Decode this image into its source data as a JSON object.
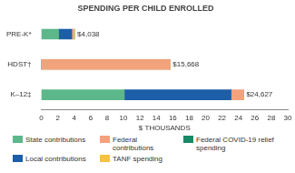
{
  "chart_data": {
    "type": "bar",
    "title": "SPENDING PER CHILD ENROLLED",
    "orientation": "horizontal",
    "stacked": true,
    "grid": false,
    "legend": "bottom",
    "x_label": "$ THOUSANDS",
    "categories": [
      "PRE-K*",
      "HDST†",
      "K–12‡"
    ],
    "series": [
      {
        "name": "State contributions",
        "color": "#5cb88a",
        "values": [
          2.1,
          0,
          10.1
        ]
      },
      {
        "name": "Local contributions",
        "color": "#1c5ea8",
        "values": [
          1.6,
          0,
          13.0
        ]
      },
      {
        "name": "Federal contributions",
        "color": "#f2a37c",
        "values": [
          0.2,
          15.668,
          1.527
        ]
      },
      {
        "name": "TANF spending",
        "color": "#f6c244",
        "values": [
          0.1,
          0,
          0
        ]
      },
      {
        "name": "Federal COVID-19 relief spending",
        "color": "#178a68",
        "values": [
          0.038,
          0,
          0
        ]
      }
    ],
    "annotations": [
      {
        "category": "PRE-K*",
        "value": 4.038,
        "label": "$4,038"
      },
      {
        "category": "HDST†",
        "value": 15.668,
        "label": "$15,668"
      },
      {
        "category": "K–12‡",
        "value": 24.627,
        "label": "$24,627"
      }
    ],
    "xlim": [
      0,
      30
    ],
    "xticks": [
      0,
      2,
      4,
      6,
      8,
      10,
      12,
      14,
      16,
      18,
      20,
      22,
      24,
      26,
      28,
      30
    ]
  }
}
